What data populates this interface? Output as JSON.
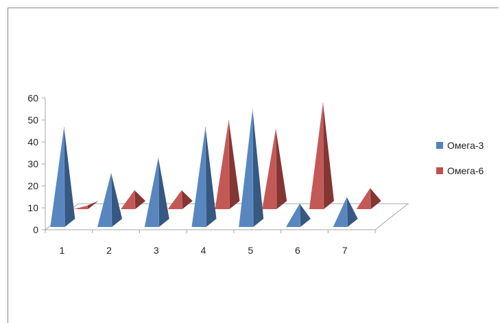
{
  "chart_data": {
    "type": "bar",
    "style": "3d-pyramid",
    "categories": [
      "1",
      "2",
      "3",
      "4",
      "5",
      "6",
      "7"
    ],
    "series": [
      {
        "name": "Омега-3",
        "color": "#4f81bd",
        "values": [
          45,
          24,
          31,
          45,
          53,
          10,
          13
        ]
      },
      {
        "name": "Омега-6",
        "color": "#c0504d",
        "values": [
          1,
          8,
          8,
          40,
          36,
          48,
          9
        ]
      }
    ],
    "yticks": [
      "0",
      "10",
      "20",
      "30",
      "40",
      "50",
      "60"
    ],
    "ylim": [
      0,
      60
    ],
    "grid": false,
    "legend": "right"
  }
}
